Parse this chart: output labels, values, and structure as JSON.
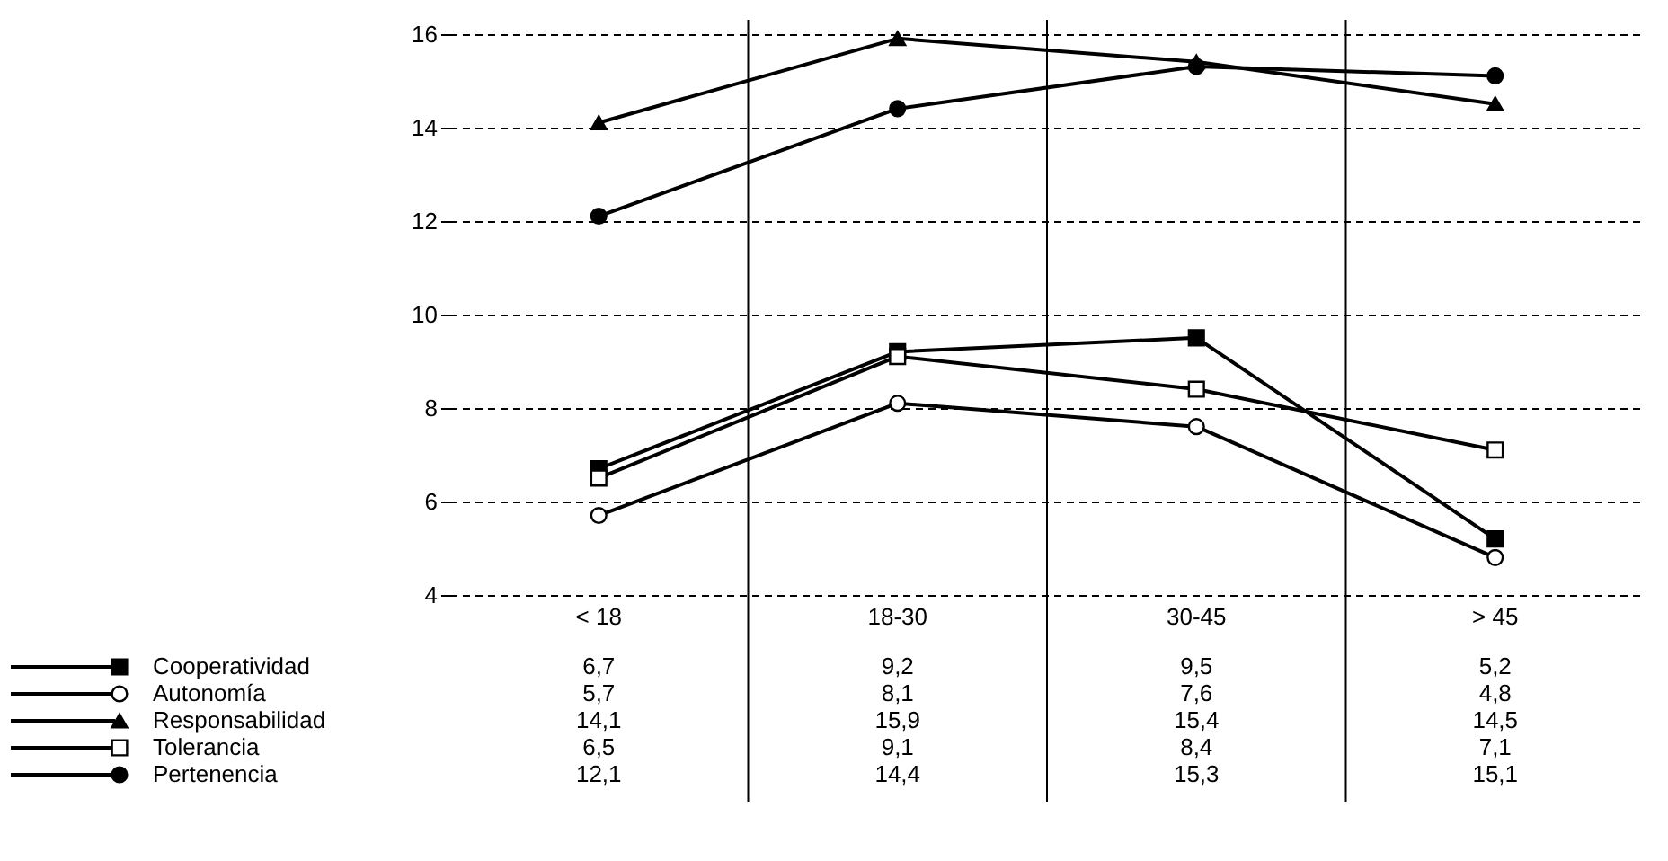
{
  "chart_data": {
    "type": "line",
    "categories": [
      "< 18",
      "18-30",
      "30-45",
      "> 45"
    ],
    "series": [
      {
        "name": "Cooperatividad",
        "color": "#000000",
        "marker": "square",
        "values": [
          6.7,
          9.2,
          9.5,
          5.2
        ],
        "value_labels": [
          "6,7",
          "9,2",
          "9,5",
          "5,2"
        ]
      },
      {
        "name": "Autonomía",
        "color": "#000000",
        "marker": "circle",
        "values": [
          5.7,
          8.1,
          7.6,
          4.8
        ],
        "value_labels": [
          "5,7",
          "8,1",
          "7,6",
          "4,8"
        ]
      },
      {
        "name": "Responsabilidad",
        "color": "#000000",
        "marker": "triangle",
        "values": [
          14.1,
          15.9,
          15.4,
          14.5
        ],
        "value_labels": [
          "14,1",
          "15,9",
          "15,4",
          "14,5"
        ]
      },
      {
        "name": "Tolerancia",
        "color": "#000000",
        "marker": "square",
        "values": [
          6.5,
          9.1,
          8.4,
          7.1
        ],
        "value_labels": [
          "6,5",
          "9,1",
          "8,4",
          "7,1"
        ]
      },
      {
        "name": "Pertenencia",
        "color": "#000000",
        "marker": "circle",
        "values": [
          12.1,
          14.4,
          15.3,
          15.1
        ],
        "value_labels": [
          "12,1",
          "14,4",
          "15,3",
          "15,1"
        ]
      }
    ],
    "ylim": [
      4,
      16.3
    ],
    "yticks": [
      4,
      6,
      8,
      10,
      12,
      14,
      16
    ],
    "grid": true,
    "legend": "bottom left",
    "line_style": "solid"
  }
}
